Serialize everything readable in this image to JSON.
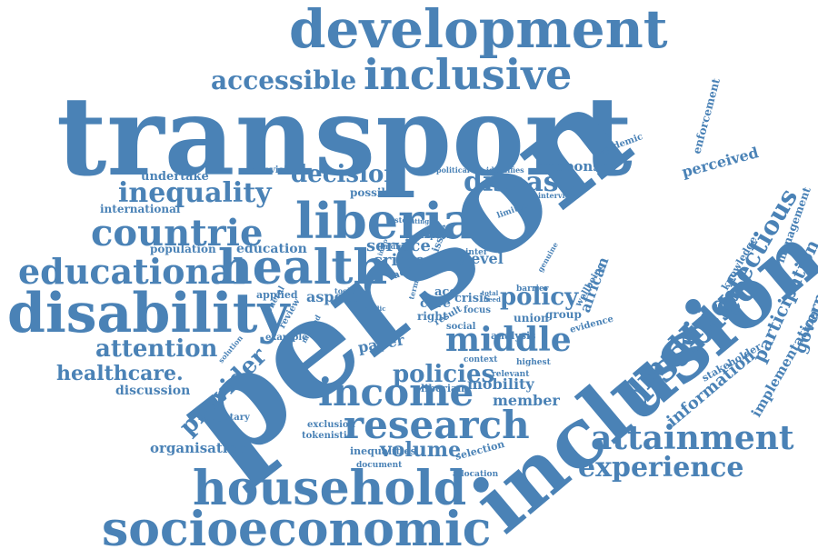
{
  "theme": {
    "word_color": "#4a82b6",
    "background": "#ffffff"
  },
  "words": [
    {
      "text": "transport",
      "size": 120,
      "rotate": 0
    },
    {
      "text": "person",
      "size": 150,
      "rotate": -38
    },
    {
      "text": "inclusion",
      "size": 90,
      "rotate": -40
    },
    {
      "text": "development",
      "size": 58,
      "rotate": 0
    },
    {
      "text": "inclusive",
      "size": 46,
      "rotate": 0
    },
    {
      "text": "disability",
      "size": 60,
      "rotate": 0
    },
    {
      "text": "liberia",
      "size": 54,
      "rotate": 0
    },
    {
      "text": "health",
      "size": 52,
      "rotate": 0
    },
    {
      "text": "household",
      "size": 52,
      "rotate": 0
    },
    {
      "text": "socioeconomic",
      "size": 52,
      "rotate": 0
    },
    {
      "text": "research",
      "size": 42,
      "rotate": 0
    },
    {
      "text": "income",
      "size": 42,
      "rotate": 0
    },
    {
      "text": "countrie",
      "size": 40,
      "rotate": 0
    },
    {
      "text": "educational",
      "size": 38,
      "rotate": 0
    },
    {
      "text": "disabled",
      "size": 42,
      "rotate": -45
    },
    {
      "text": "middle",
      "size": 36,
      "rotate": 0
    },
    {
      "text": "attainment",
      "size": 36,
      "rotate": 0
    },
    {
      "text": "experience",
      "size": 30,
      "rotate": 0
    },
    {
      "text": "inequality",
      "size": 30,
      "rotate": 0
    },
    {
      "text": "disease",
      "size": 30,
      "rotate": 0
    },
    {
      "text": "accessible",
      "size": 28,
      "rotate": 0
    },
    {
      "text": "making",
      "size": 32,
      "rotate": -45
    },
    {
      "text": "infectious",
      "size": 28,
      "rotate": -60
    },
    {
      "text": "decision",
      "size": 26,
      "rotate": 0
    },
    {
      "text": "policy",
      "size": 26,
      "rotate": 0
    },
    {
      "text": "policies",
      "size": 26,
      "rotate": 0
    },
    {
      "text": "attention",
      "size": 26,
      "rotate": 0
    },
    {
      "text": "healthcare.",
      "size": 22,
      "rotate": 0
    },
    {
      "text": "provider",
      "size": 26,
      "rotate": -45
    },
    {
      "text": "volume",
      "size": 22,
      "rotate": 0
    },
    {
      "text": "participation",
      "size": 20,
      "rotate": -65
    },
    {
      "text": "government",
      "size": 18,
      "rotate": -70
    },
    {
      "text": "information",
      "size": 18,
      "rotate": -40
    },
    {
      "text": "service",
      "size": 18,
      "rotate": 0
    },
    {
      "text": "crime",
      "size": 18,
      "rotate": 0
    },
    {
      "text": "african",
      "size": 16,
      "rotate": -70
    },
    {
      "text": "perceived",
      "size": 16,
      "rotate": -15
    },
    {
      "text": "response",
      "size": 15,
      "rotate": 0
    },
    {
      "text": "aspect",
      "size": 16,
      "rotate": 0
    },
    {
      "text": "mobility",
      "size": 16,
      "rotate": 0
    },
    {
      "text": "member",
      "size": 16,
      "rotate": 0
    },
    {
      "text": "paper",
      "size": 16,
      "rotate": -10
    },
    {
      "text": "organisation",
      "size": 15,
      "rotate": 0
    },
    {
      "text": "discussion",
      "size": 14,
      "rotate": 0
    },
    {
      "text": "education",
      "size": 14,
      "rotate": 0
    },
    {
      "text": "population",
      "size": 12,
      "rotate": 0
    },
    {
      "text": "international",
      "size": 12,
      "rotate": 0
    },
    {
      "text": "undertake",
      "size": 13,
      "rotate": 0
    },
    {
      "text": "provision",
      "size": 10,
      "rotate": 0
    },
    {
      "text": "possible",
      "size": 12,
      "rotate": 0
    },
    {
      "text": "implementation",
      "size": 15,
      "rotate": -60
    },
    {
      "text": "management",
      "size": 12,
      "rotate": -70
    },
    {
      "text": "stakeholder",
      "size": 11,
      "rotate": -30
    },
    {
      "text": "enforcement",
      "size": 12,
      "rotate": -75
    },
    {
      "text": "knowledge",
      "size": 11,
      "rotate": -60
    },
    {
      "text": "epidemic",
      "size": 10,
      "rotate": -20
    },
    {
      "text": "level",
      "size": 16,
      "rotate": 0
    },
    {
      "text": "union",
      "size": 12,
      "rotate": 0
    },
    {
      "text": "group",
      "size": 12,
      "rotate": 0
    },
    {
      "text": "evidence",
      "size": 10,
      "rotate": -15
    },
    {
      "text": "wellbeing",
      "size": 10,
      "rotate": -60
    },
    {
      "text": "genuine",
      "size": 8,
      "rotate": -60
    },
    {
      "text": "barrier",
      "size": 9,
      "rotate": 0
    },
    {
      "text": "analysis",
      "size": 11,
      "rotate": 0
    },
    {
      "text": "highest",
      "size": 9,
      "rotate": 0
    },
    {
      "text": "context",
      "size": 9,
      "rotate": 0
    },
    {
      "text": "relevant",
      "size": 9,
      "rotate": 0
    },
    {
      "text": "liberian",
      "size": 11,
      "rotate": 0
    },
    {
      "text": "focus",
      "size": 10,
      "rotate": 0
    },
    {
      "text": "social",
      "size": 10,
      "rotate": 0
    },
    {
      "text": "care",
      "size": 14,
      "rotate": 0
    },
    {
      "text": "crisis",
      "size": 13,
      "rotate": 0
    },
    {
      "text": "right",
      "size": 12,
      "rotate": 0
    },
    {
      "text": "acc",
      "size": 13,
      "rotate": 0
    },
    {
      "text": "result",
      "size": 10,
      "rotate": -30
    },
    {
      "text": "term",
      "size": 8,
      "rotate": -75
    },
    {
      "text": "total",
      "size": 7,
      "rotate": 0
    },
    {
      "text": "need",
      "size": 7,
      "rotate": 0
    },
    {
      "text": "inter",
      "size": 9,
      "rotate": 0
    },
    {
      "text": "low",
      "size": 7,
      "rotate": -70
    },
    {
      "text": "issue",
      "size": 11,
      "rotate": -70
    },
    {
      "text": "impact",
      "size": 9,
      "rotate": 0
    },
    {
      "text": "rating",
      "size": 7,
      "rotate": 0
    },
    {
      "text": "system",
      "size": 8,
      "rotate": 0
    },
    {
      "text": "intro",
      "size": 7,
      "rotate": -70
    },
    {
      "text": "finding",
      "size": 8,
      "rotate": 0
    },
    {
      "text": "lack",
      "size": 11,
      "rotate": -20
    },
    {
      "text": "toolkit",
      "size": 8,
      "rotate": 0
    },
    {
      "text": "applied",
      "size": 11,
      "rotate": 0
    },
    {
      "text": "general",
      "size": 9,
      "rotate": -60
    },
    {
      "text": "review",
      "size": 10,
      "rotate": -60
    },
    {
      "text": "public",
      "size": 7,
      "rotate": 0
    },
    {
      "text": "example",
      "size": 10,
      "rotate": 0
    },
    {
      "text": "method",
      "size": 8,
      "rotate": -60
    },
    {
      "text": "solution",
      "size": 8,
      "rotate": -50
    },
    {
      "text": "budgetary",
      "size": 10,
      "rotate": 0
    },
    {
      "text": "exclusion",
      "size": 10,
      "rotate": 0
    },
    {
      "text": "tokenistic",
      "size": 10,
      "rotate": 0
    },
    {
      "text": "inequalities",
      "size": 11,
      "rotate": 0
    },
    {
      "text": "document",
      "size": 9,
      "rotate": 0
    },
    {
      "text": "allocation",
      "size": 9,
      "rotate": 0
    },
    {
      "text": "selection",
      "size": 11,
      "rotate": -15
    },
    {
      "text": "political",
      "size": 8,
      "rotate": 0
    },
    {
      "text": "identifies",
      "size": 8,
      "rotate": 0
    },
    {
      "text": "limited",
      "size": 9,
      "rotate": -20
    },
    {
      "text": "interview",
      "size": 8,
      "rotate": 0
    }
  ]
}
